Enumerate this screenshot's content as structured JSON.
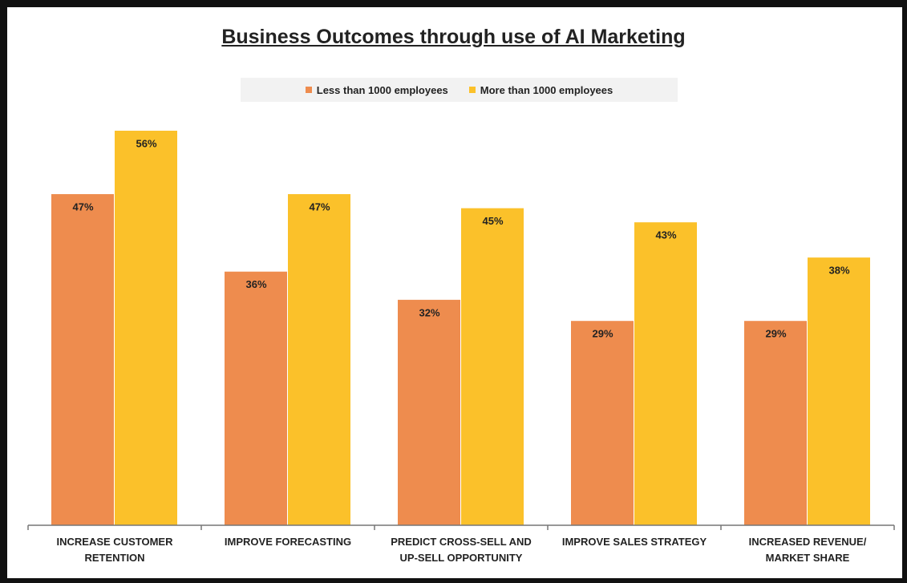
{
  "chart_data": {
    "type": "bar",
    "title": "Business Outcomes through use of AI Marketing",
    "categories": [
      "INCREASE CUSTOMER RETENTION",
      "IMPROVE FORECASTING",
      "PREDICT CROSS-SELL AND UP-SELL OPPORTUNITY",
      "IMPROVE SALES STRATEGY",
      "INCREASED REVENUE/ MARKET SHARE"
    ],
    "series": [
      {
        "name": "Less than 1000 employees",
        "color": "#ee8c4e",
        "values": [
          47,
          36,
          32,
          29,
          29
        ],
        "value_labels": [
          "47%",
          "36%",
          "32%",
          "29%",
          "29%"
        ]
      },
      {
        "name": "More than 1000 employees",
        "color": "#fbc12a",
        "values": [
          56,
          47,
          45,
          43,
          38
        ],
        "value_labels": [
          "56%",
          "47%",
          "45%",
          "43%",
          "38%"
        ]
      }
    ]
  }
}
